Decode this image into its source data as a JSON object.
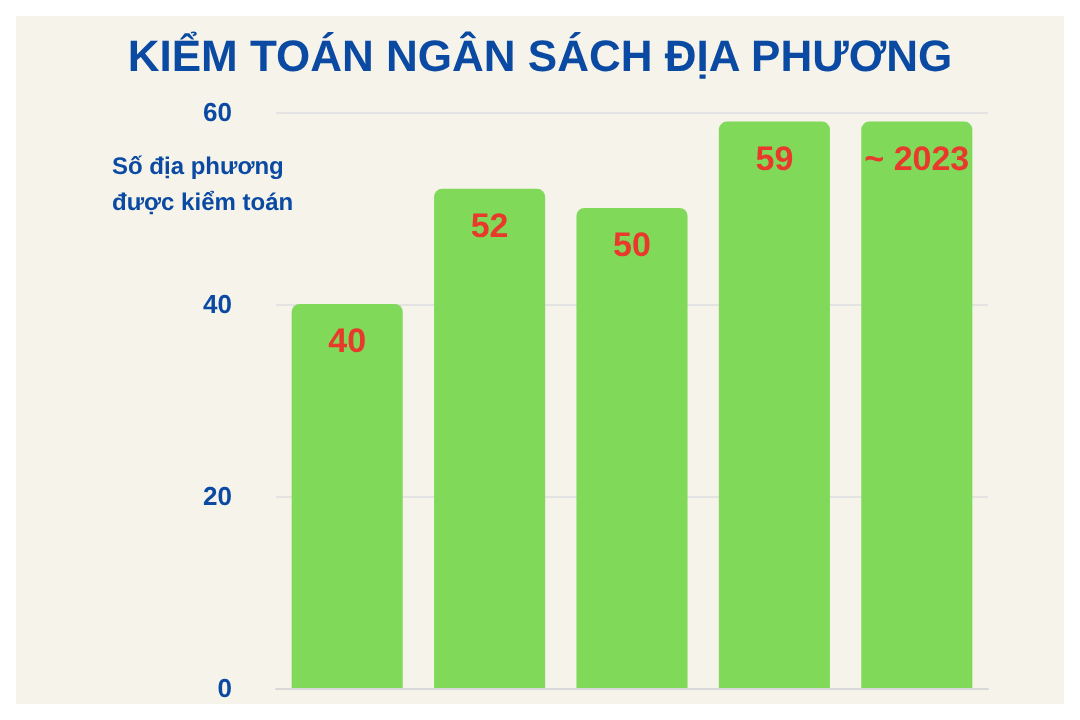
{
  "chart_data": {
    "type": "bar",
    "title": "KIỂM TOÁN NGÂN SÁCH ĐỊA PHƯƠNG",
    "ylabel": "Số địa phương\nđược kiểm toán",
    "categories": [
      null,
      null,
      null,
      null,
      null
    ],
    "values": [
      40,
      52,
      50,
      59,
      59
    ],
    "value_labels": [
      "40",
      "52",
      "50",
      "59",
      null
    ],
    "annotations": [
      "~ 2023"
    ],
    "color": "#80d958",
    "ylim": [
      0,
      60
    ],
    "yticks": [
      0,
      20,
      40,
      60
    ],
    "grid": "y"
  }
}
